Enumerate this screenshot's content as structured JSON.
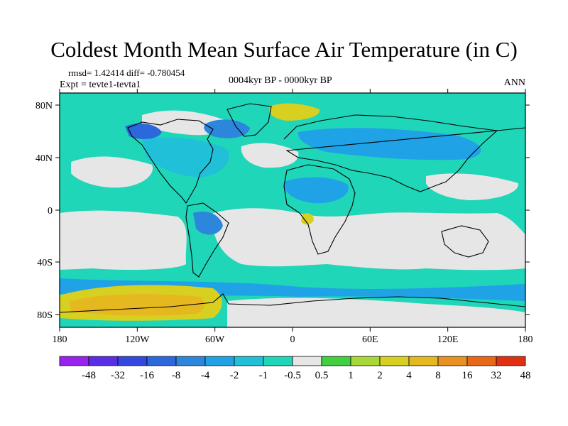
{
  "title": "Coldest Month Mean Surface Air Temperature (in C)",
  "stats": {
    "rmsd_line": "rmsd= 1.42414 diff= -0.780454",
    "expt_line": "Expt = tevte1-tevta1",
    "period": "0004kyr BP - 0000kyr BP",
    "season": "ANN"
  },
  "map": {
    "lat_labels": [
      "80N",
      "40N",
      "0",
      "40S",
      "80S"
    ],
    "lon_labels": [
      "180",
      "120W",
      "60W",
      "0",
      "60E",
      "120E",
      "180"
    ]
  },
  "colorbar": {
    "labels": [
      "-48",
      "-32",
      "-16",
      "-8",
      "-4",
      "-2",
      "-1",
      "-0.5",
      "0.5",
      "1",
      "2",
      "4",
      "8",
      "16",
      "32",
      "48"
    ],
    "colors": [
      "#9a22f0",
      "#5a2ee6",
      "#3448e0",
      "#2a68dc",
      "#2c86dc",
      "#20a2e6",
      "#20c0d8",
      "#20d6b8",
      "#e6e6e6",
      "#40d040",
      "#a8d838",
      "#d8d020",
      "#e6b820",
      "#e89020",
      "#e86818",
      "#e03010"
    ]
  },
  "palette": {
    "neutral": "#e6e6e6",
    "cool_light": "#20d6b8",
    "cool_mid": "#20c0d8",
    "cool": "#20a2e6",
    "cool_dark": "#2c86dc",
    "cool_deep": "#2a68dc",
    "warm_light": "#d8d020",
    "warm": "#e6b820"
  }
}
